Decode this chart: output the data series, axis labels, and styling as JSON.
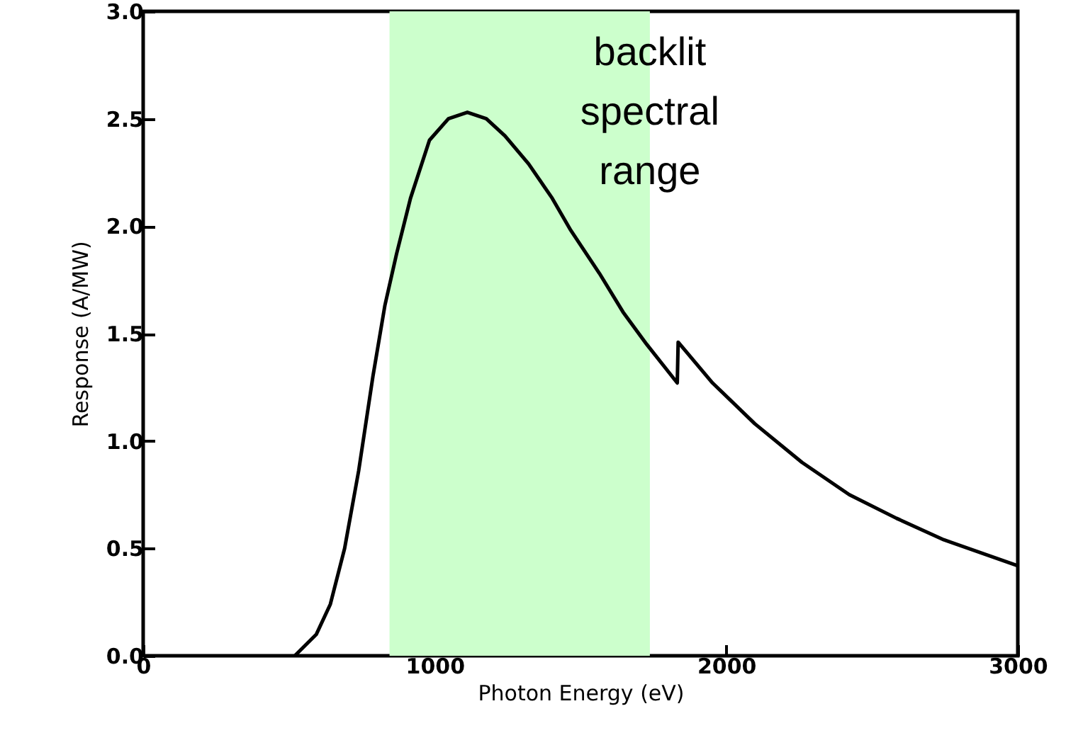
{
  "chart_data": {
    "type": "line",
    "xlabel": "Photon Energy (eV)",
    "ylabel": "Response (A/MW)",
    "x": [
      520,
      594,
      642,
      691,
      739,
      788,
      829,
      869,
      917,
      982,
      1047,
      1112,
      1177,
      1241,
      1322,
      1403,
      1467,
      1565,
      1646,
      1727,
      1832,
      1835,
      1953,
      2098,
      2260,
      2422,
      2584,
      2746,
      2998
    ],
    "series": [
      {
        "color": "#000000",
        "values": [
          0,
          0.1,
          0.24,
          0.5,
          0.86,
          1.3,
          1.63,
          1.87,
          2.13,
          2.4,
          2.5,
          2.53,
          2.5,
          2.42,
          2.29,
          2.13,
          1.98,
          1.78,
          1.6,
          1.45,
          1.27,
          1.46,
          1.27,
          1.08,
          0.9,
          0.75,
          0.64,
          0.54,
          0.42
        ]
      }
    ],
    "xlim": [
      0,
      3000
    ],
    "xticks": [
      0,
      1000,
      2000,
      3000
    ],
    "ylim": [
      0,
      3
    ],
    "yticks": [
      {
        "value": 0,
        "label": "0.0"
      },
      {
        "value": 0.5,
        "label": "0.5"
      },
      {
        "value": 1,
        "label": "1.0"
      },
      {
        "value": 1.5,
        "label": "1.5"
      },
      {
        "value": 2,
        "label": "2.0"
      },
      {
        "value": 2.5,
        "label": "2.5"
      },
      {
        "value": 3,
        "label": "3.0"
      }
    ],
    "bands": [
      {
        "axis": "x",
        "from": 845,
        "to": 1738,
        "label": "backlit spectral range",
        "color": "#ccffcc"
      }
    ],
    "grid": false
  }
}
